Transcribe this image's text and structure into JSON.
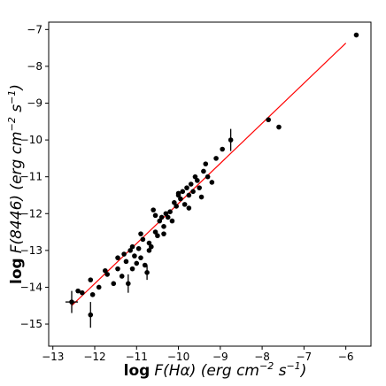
{
  "chart_data": {
    "type": "scatter",
    "xlabel": {
      "prefix": "log",
      "main": "F(Hα)",
      "unit_open": " (erg cm",
      "unit_exp1": "−2",
      "unit_mid": " s",
      "unit_exp2": "−1",
      "unit_close": ")"
    },
    "ylabel": {
      "prefix": "log",
      "main": "F(8446)",
      "unit_open": " (erg cm",
      "unit_exp1": "−2",
      "unit_mid": " s",
      "unit_exp2": "−1",
      "unit_close": ")"
    },
    "xlim": [
      -13.1,
      -5.4
    ],
    "ylim": [
      -15.6,
      -6.8
    ],
    "xticks": [
      -13,
      -12,
      -11,
      -10,
      -9,
      -8,
      -7,
      -6
    ],
    "xtick_labels": [
      "−13",
      "−12",
      "−11",
      "−10",
      "−9",
      "−8",
      "−7",
      "−6"
    ],
    "yticks": [
      -15,
      -14,
      -13,
      -12,
      -11,
      -10,
      -9,
      -8,
      -7
    ],
    "ytick_labels": [
      "−15",
      "−14",
      "−13",
      "−12",
      "−11",
      "−10",
      "−9",
      "−8",
      "−7"
    ],
    "grid": false,
    "colors": {
      "points": "#000000",
      "fit_line": "#ff0000",
      "axes": "#000000"
    },
    "fit_line": {
      "x": [
        -12.55,
        -6.0
      ],
      "y": [
        -14.5,
        -7.37
      ]
    },
    "points": [
      {
        "x": -12.55,
        "y": -14.4,
        "xerr": 0.15,
        "yerr": 0.3
      },
      {
        "x": -12.4,
        "y": -14.1
      },
      {
        "x": -12.3,
        "y": -14.15
      },
      {
        "x": -12.1,
        "y": -14.75,
        "yerr": 0.35
      },
      {
        "x": -12.05,
        "y": -14.2
      },
      {
        "x": -12.1,
        "y": -13.8
      },
      {
        "x": -11.9,
        "y": -14.0
      },
      {
        "x": -11.75,
        "y": -13.55
      },
      {
        "x": -11.7,
        "y": -13.65
      },
      {
        "x": -11.55,
        "y": -13.9
      },
      {
        "x": -11.45,
        "y": -13.5
      },
      {
        "x": -11.35,
        "y": -13.7
      },
      {
        "x": -11.3,
        "y": -13.1
      },
      {
        "x": -11.25,
        "y": -13.3
      },
      {
        "x": -11.2,
        "y": -13.9,
        "yerr": 0.25
      },
      {
        "x": -11.15,
        "y": -13.0
      },
      {
        "x": -11.1,
        "y": -13.5
      },
      {
        "x": -11.05,
        "y": -13.15
      },
      {
        "x": -11.0,
        "y": -13.35
      },
      {
        "x": -10.95,
        "y": -12.95
      },
      {
        "x": -10.9,
        "y": -13.2
      },
      {
        "x": -10.85,
        "y": -12.7
      },
      {
        "x": -10.8,
        "y": -13.4
      },
      {
        "x": -10.75,
        "y": -13.6,
        "yerr": 0.2
      },
      {
        "x": -10.7,
        "y": -12.8
      },
      {
        "x": -10.65,
        "y": -12.9
      },
      {
        "x": -10.6,
        "y": -11.9
      },
      {
        "x": -10.55,
        "y": -12.5
      },
      {
        "x": -10.5,
        "y": -12.6
      },
      {
        "x": -10.45,
        "y": -12.2
      },
      {
        "x": -10.4,
        "y": -12.1
      },
      {
        "x": -10.35,
        "y": -12.35
      },
      {
        "x": -10.3,
        "y": -12.0
      },
      {
        "x": -10.25,
        "y": -12.1
      },
      {
        "x": -10.2,
        "y": -11.95
      },
      {
        "x": -10.15,
        "y": -12.2
      },
      {
        "x": -10.1,
        "y": -11.7
      },
      {
        "x": -10.05,
        "y": -11.8
      },
      {
        "x": -10.0,
        "y": -11.5
      },
      {
        "x": -9.95,
        "y": -11.6
      },
      {
        "x": -9.9,
        "y": -11.4
      },
      {
        "x": -9.85,
        "y": -11.75
      },
      {
        "x": -9.8,
        "y": -11.3
      },
      {
        "x": -9.75,
        "y": -11.5
      },
      {
        "x": -9.7,
        "y": -11.2
      },
      {
        "x": -9.65,
        "y": -11.4
      },
      {
        "x": -9.6,
        "y": -11.0
      },
      {
        "x": -9.55,
        "y": -11.1
      },
      {
        "x": -9.5,
        "y": -11.3
      },
      {
        "x": -9.45,
        "y": -11.55
      },
      {
        "x": -9.4,
        "y": -10.85
      },
      {
        "x": -9.35,
        "y": -10.65
      },
      {
        "x": -9.3,
        "y": -11.0
      },
      {
        "x": -9.2,
        "y": -11.15
      },
      {
        "x": -9.1,
        "y": -10.5
      },
      {
        "x": -8.95,
        "y": -10.25
      },
      {
        "x": -8.75,
        "y": -10.0,
        "yerr": 0.3
      },
      {
        "x": -10.7,
        "y": -13.0
      },
      {
        "x": -10.9,
        "y": -12.55
      },
      {
        "x": -10.35,
        "y": -12.55
      },
      {
        "x": -11.45,
        "y": -13.2
      },
      {
        "x": -11.1,
        "y": -12.9
      },
      {
        "x": -10.55,
        "y": -12.05
      },
      {
        "x": -10.0,
        "y": -11.45
      },
      {
        "x": -9.75,
        "y": -11.85
      },
      {
        "x": -7.85,
        "y": -9.45
      },
      {
        "x": -7.6,
        "y": -9.65
      },
      {
        "x": -5.75,
        "y": -7.15
      }
    ]
  }
}
